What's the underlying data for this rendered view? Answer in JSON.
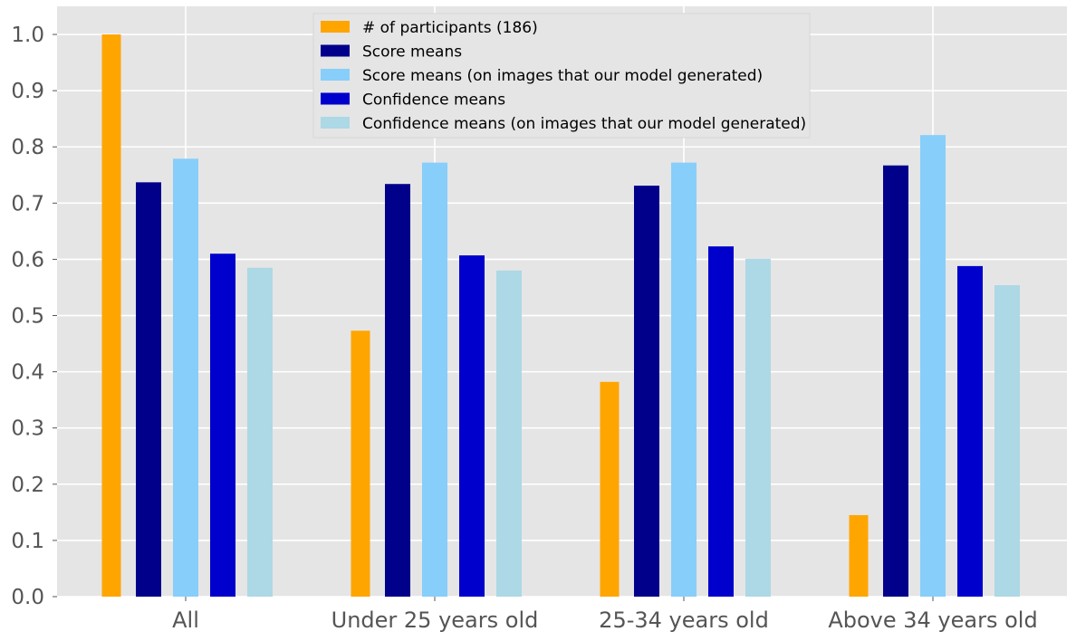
{
  "chart_data": {
    "type": "bar",
    "categories": [
      "All",
      "Under 25 years old",
      "25-34 years old",
      "Above 34 years old"
    ],
    "series": [
      {
        "name": "# of participants (186)",
        "color": "#FFA500",
        "values": [
          1.0,
          0.473,
          0.382,
          0.145
        ]
      },
      {
        "name": "Score means",
        "color": "#00008B",
        "values": [
          0.737,
          0.734,
          0.731,
          0.767
        ]
      },
      {
        "name": "Score means (on images that our model generated)",
        "color": "#87CEFA",
        "values": [
          0.779,
          0.772,
          0.772,
          0.821
        ]
      },
      {
        "name": "Confidence means",
        "color": "#0000CD",
        "values": [
          0.61,
          0.607,
          0.623,
          0.588
        ]
      },
      {
        "name": "Confidence means (on images that our model generated)",
        "color": "#ADD8E6",
        "values": [
          0.585,
          0.58,
          0.601,
          0.554
        ]
      }
    ],
    "yticks": [
      "0.0",
      "0.1",
      "0.2",
      "0.3",
      "0.4",
      "0.5",
      "0.6",
      "0.7",
      "0.8",
      "0.9",
      "1.0"
    ],
    "ylim": [
      0,
      1.05
    ],
    "grid": true,
    "legend_position": "top-center",
    "background_color": "#E5E5E5",
    "grid_color": "#FFFFFF"
  }
}
